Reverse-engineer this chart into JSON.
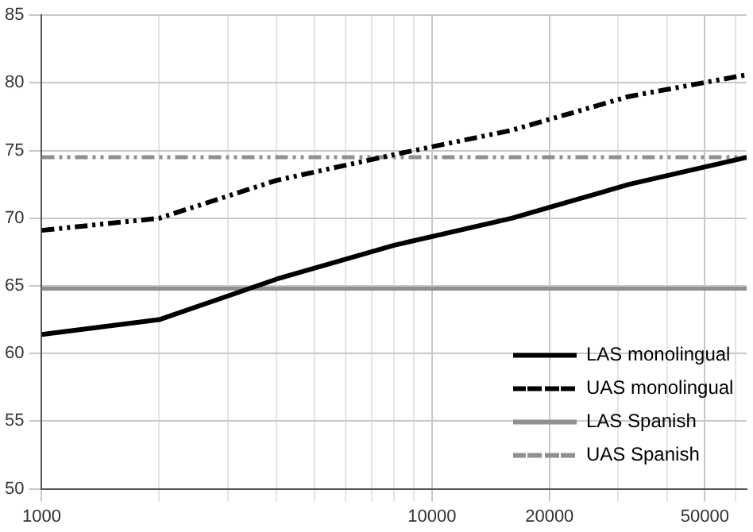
{
  "chart_data": {
    "type": "line",
    "log": "x",
    "grid": true,
    "legend": "bottom right",
    "marker": "none",
    "xlim": [
      1000,
      64000
    ],
    "xticks": [
      1000,
      {
        "value": 2000,
        "label": null
      },
      {
        "value": 3000,
        "label": null
      },
      {
        "value": 4000,
        "label": null
      },
      {
        "value": 5000,
        "label": null
      },
      {
        "value": 6000,
        "label": null
      },
      {
        "value": 7000,
        "label": null
      },
      {
        "value": 8000,
        "label": null
      },
      {
        "value": 9000,
        "label": null
      },
      10000,
      20000,
      {
        "value": 30000,
        "label": null
      },
      {
        "value": 40000,
        "label": null
      },
      50000,
      {
        "value": 60000,
        "label": null
      }
    ],
    "ylim": [
      50,
      85
    ],
    "yticks": [
      50,
      55,
      60,
      65,
      70,
      75,
      80,
      85
    ],
    "x": [
      1000,
      2000,
      4000,
      8000,
      16000,
      32000,
      64000
    ],
    "series": [
      {
        "name": "LAS monolingual",
        "color": "#000000",
        "line_style": "solid",
        "values": [
          61.4,
          62.5,
          65.5,
          68.0,
          70.0,
          72.5,
          74.5
        ]
      },
      {
        "name": "UAS monolingual",
        "color": "#000000",
        "line_style": "dashed",
        "values": [
          69.1,
          70.0,
          72.8,
          74.7,
          76.5,
          79.0,
          80.6
        ]
      }
    ],
    "ref_lines": [
      {
        "axis": "y",
        "value": 64.8,
        "label": "LAS Spanish",
        "color": "#909090",
        "line_style": "solid"
      },
      {
        "axis": "y",
        "value": 74.5,
        "label": "UAS Spanish",
        "color": "#909090",
        "line_style": "dashed"
      }
    ]
  }
}
